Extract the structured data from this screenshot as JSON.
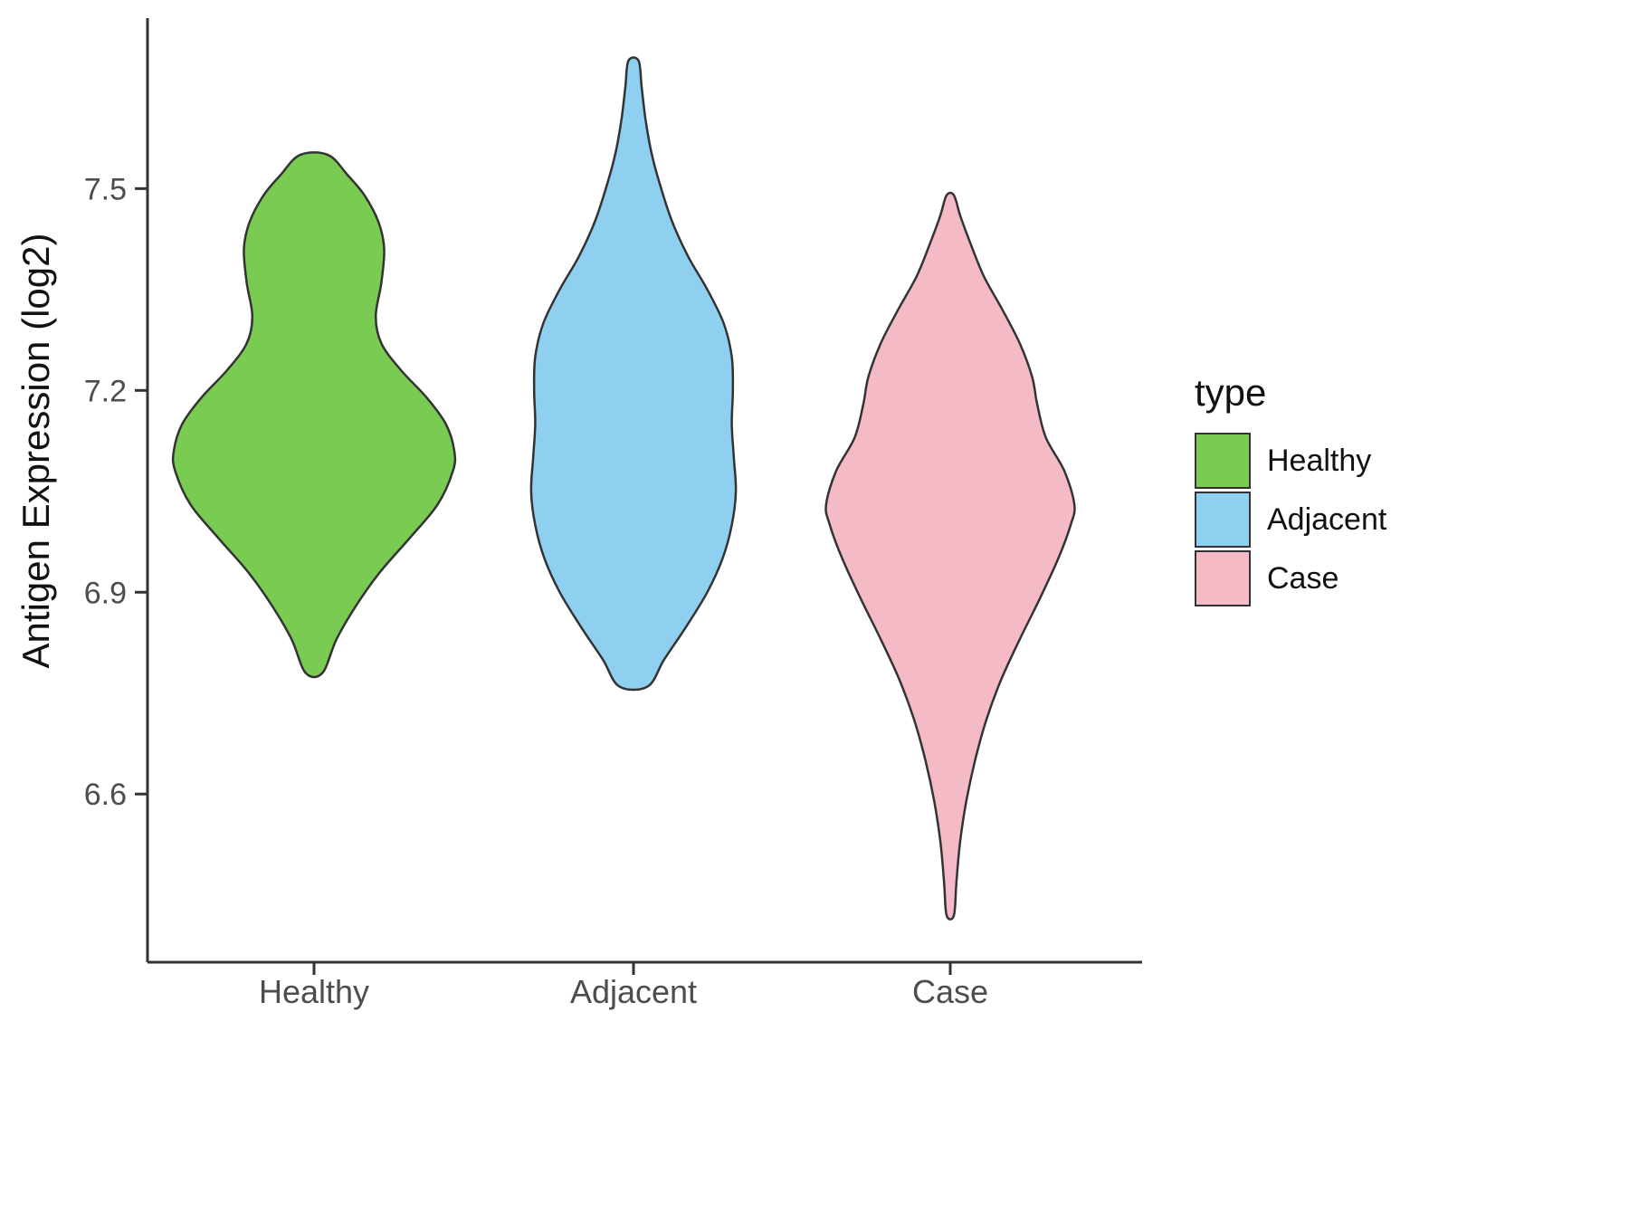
{
  "chart_data": {
    "type": "violin",
    "title": "",
    "xlabel": "",
    "ylabel": "Antigen Expression (log2)",
    "categories": [
      "Healthy",
      "Adjacent",
      "Case"
    ],
    "yticks": [
      "6.6",
      "6.9",
      "7.2",
      "7.5"
    ],
    "ylim": [
      6.35,
      7.74
    ],
    "grid": false,
    "outline_color": "#333333",
    "axis_color": "#333333",
    "tick_label_color": "#4d4d4d",
    "legend": {
      "title": "type",
      "position": "right",
      "entries": [
        {
          "label": "Healthy",
          "color": "#79CC51"
        },
        {
          "label": "Adjacent",
          "color": "#8FCFF0"
        },
        {
          "label": "Case",
          "color": "#F4BAC6"
        }
      ]
    },
    "series": [
      {
        "name": "Healthy",
        "color": "#79CC51",
        "rel_width": 1.0,
        "range": [
          6.78,
          7.55
        ],
        "profile": [
          [
            6.78,
            0.06
          ],
          [
            6.83,
            0.16
          ],
          [
            6.88,
            0.3
          ],
          [
            6.93,
            0.47
          ],
          [
            6.98,
            0.68
          ],
          [
            7.03,
            0.88
          ],
          [
            7.08,
            0.99
          ],
          [
            7.11,
            1.0
          ],
          [
            7.15,
            0.94
          ],
          [
            7.19,
            0.8
          ],
          [
            7.23,
            0.62
          ],
          [
            7.27,
            0.48
          ],
          [
            7.31,
            0.44
          ],
          [
            7.36,
            0.48
          ],
          [
            7.41,
            0.5
          ],
          [
            7.45,
            0.46
          ],
          [
            7.49,
            0.36
          ],
          [
            7.52,
            0.24
          ],
          [
            7.55,
            0.1
          ]
        ]
      },
      {
        "name": "Adjacent",
        "color": "#8FCFF0",
        "rel_width": 0.73,
        "range": [
          6.76,
          7.69
        ],
        "profile": [
          [
            6.76,
            0.14
          ],
          [
            6.8,
            0.3
          ],
          [
            6.85,
            0.52
          ],
          [
            6.9,
            0.72
          ],
          [
            6.95,
            0.87
          ],
          [
            7.0,
            0.96
          ],
          [
            7.05,
            1.0
          ],
          [
            7.1,
            0.98
          ],
          [
            7.15,
            0.96
          ],
          [
            7.2,
            0.97
          ],
          [
            7.25,
            0.96
          ],
          [
            7.3,
            0.88
          ],
          [
            7.35,
            0.72
          ],
          [
            7.4,
            0.53
          ],
          [
            7.45,
            0.38
          ],
          [
            7.5,
            0.27
          ],
          [
            7.55,
            0.18
          ],
          [
            7.6,
            0.12
          ],
          [
            7.65,
            0.08
          ],
          [
            7.69,
            0.05
          ]
        ]
      },
      {
        "name": "Case",
        "color": "#F4BAC6",
        "rel_width": 0.885,
        "range": [
          6.42,
          7.49
        ],
        "profile": [
          [
            6.42,
            0.03
          ],
          [
            6.47,
            0.05
          ],
          [
            6.53,
            0.08
          ],
          [
            6.59,
            0.13
          ],
          [
            6.65,
            0.2
          ],
          [
            6.71,
            0.29
          ],
          [
            6.77,
            0.41
          ],
          [
            6.83,
            0.56
          ],
          [
            6.89,
            0.72
          ],
          [
            6.95,
            0.87
          ],
          [
            7.0,
            0.97
          ],
          [
            7.03,
            1.0
          ],
          [
            7.08,
            0.92
          ],
          [
            7.13,
            0.77
          ],
          [
            7.18,
            0.7
          ],
          [
            7.22,
            0.66
          ],
          [
            7.27,
            0.56
          ],
          [
            7.32,
            0.42
          ],
          [
            7.37,
            0.27
          ],
          [
            7.42,
            0.16
          ],
          [
            7.46,
            0.08
          ],
          [
            7.49,
            0.03
          ]
        ]
      }
    ]
  }
}
